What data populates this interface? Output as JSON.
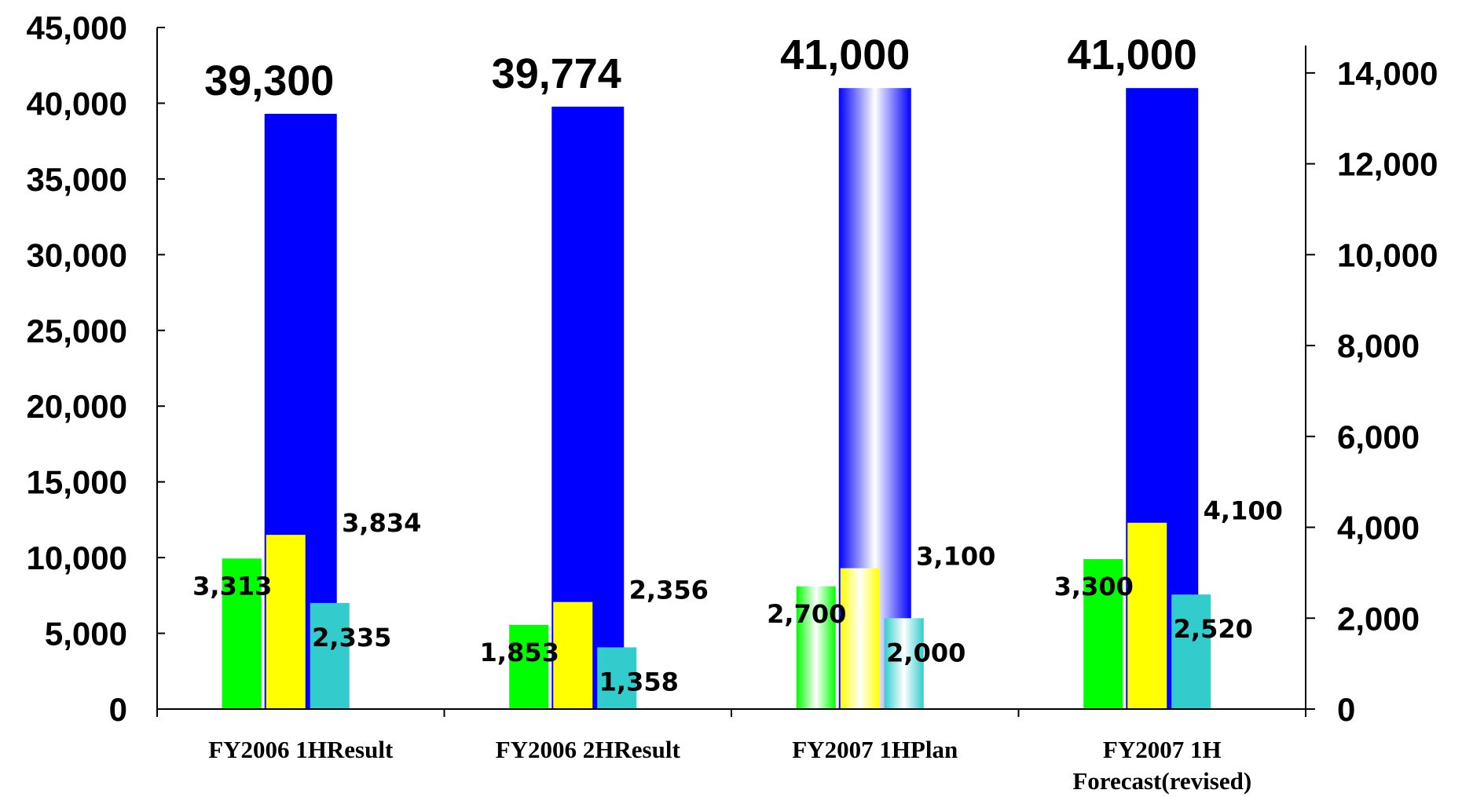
{
  "chart_data": {
    "type": "bar",
    "categories": [
      "FY2006 1HResult",
      "FY2006 2HResult",
      "FY2007 1HPlan",
      "FY2007 1H Forecast(revised)"
    ],
    "category_lines": [
      [
        "FY2006 1HResult"
      ],
      [
        "FY2006 2HResult"
      ],
      [
        "FY2007 1HPlan"
      ],
      [
        "FY2007 1H",
        "Forecast(revised)"
      ]
    ],
    "series": [
      {
        "axis": "left",
        "values": [
          39300,
          39774,
          41000,
          41000
        ],
        "labels": [
          "39,300",
          "39,774",
          "41,000",
          "41,000"
        ],
        "color": "#0000ff"
      },
      {
        "axis": "right",
        "values": [
          3313,
          1853,
          2700,
          3300
        ],
        "labels": [
          "3,313",
          "1,853",
          "2,700",
          "3,300"
        ],
        "color": "#00ff00"
      },
      {
        "axis": "right",
        "values": [
          3834,
          2356,
          3100,
          4100
        ],
        "labels": [
          "3,834",
          "2,356",
          "3,100",
          "4,100"
        ],
        "color": "#ffff00"
      },
      {
        "axis": "right",
        "values": [
          2335,
          1358,
          2000,
          2520
        ],
        "labels": [
          "2,335",
          "1,358",
          "2,000",
          "2,520"
        ],
        "color": "#33cccc"
      }
    ],
    "left_axis": {
      "ylim": [
        0,
        45000
      ],
      "ticks": [
        0,
        5000,
        10000,
        15000,
        20000,
        25000,
        30000,
        35000,
        40000,
        45000
      ],
      "tick_labels": [
        "0",
        "5,000",
        "10,000",
        "15,000",
        "20,000",
        "25,000",
        "30,000",
        "35,000",
        "40,000",
        "45,000"
      ]
    },
    "right_axis": {
      "ylim": [
        0,
        15000
      ],
      "ticks": [
        0,
        2000,
        4000,
        6000,
        8000,
        10000,
        12000,
        14000
      ],
      "tick_labels": [
        "0",
        "2,000",
        "4,000",
        "6,000",
        "8,000",
        "10,000",
        "12,000",
        "14,000"
      ]
    },
    "plan_category_index": 2,
    "grid": false,
    "legend": "none"
  }
}
